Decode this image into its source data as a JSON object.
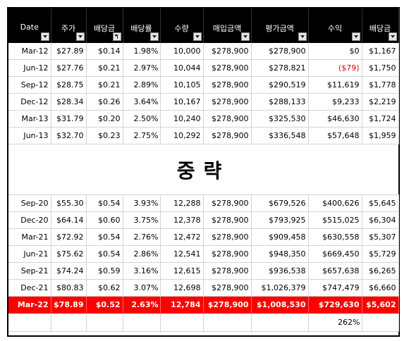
{
  "headers": [
    "Date",
    "주가",
    "배당금",
    "배당률",
    "수량",
    "매입금액",
    "평가금액",
    "수익",
    "배당금"
  ],
  "rows_top": [
    [
      "Mar-12",
      "$27.89",
      "$0.14",
      "1.98%",
      "10,000",
      "$278,900",
      "$278,900",
      "$0",
      "$1,167"
    ],
    [
      "Jun-12",
      "$27.76",
      "$0.21",
      "2.97%",
      "10,044",
      "$278,900",
      "$278,821",
      "($79)",
      "$1,750"
    ],
    [
      "Sep-12",
      "$28.75",
      "$0.21",
      "2.89%",
      "10,105",
      "$278,900",
      "$290,519",
      "$11,619",
      "$1,778"
    ],
    [
      "Dec-12",
      "$28.34",
      "$0.26",
      "3.64%",
      "10,167",
      "$278,900",
      "$288,133",
      "$9,233",
      "$2,219"
    ],
    [
      "Mar-13",
      "$31.79",
      "$0.20",
      "2.50%",
      "10,240",
      "$278,900",
      "$325,530",
      "$46,630",
      "$1,724"
    ],
    [
      "Jun-13",
      "$32.70",
      "$0.23",
      "2.75%",
      "10,292",
      "$278,900",
      "$336,548",
      "$57,648",
      "$1,959"
    ]
  ],
  "omission_text": "중략",
  "rows_bottom": [
    [
      "Sep-20",
      "$55.30",
      "$0.54",
      "3.93%",
      "12,288",
      "$278,900",
      "$679,526",
      "$400,626",
      "$5,645"
    ],
    [
      "Dec-20",
      "$64.14",
      "$0.60",
      "3.75%",
      "12,378",
      "$278,900",
      "$793,925",
      "$515,025",
      "$6,304"
    ],
    [
      "Mar-21",
      "$72.92",
      "$0.54",
      "2.76%",
      "12,472",
      "$278,900",
      "$909,458",
      "$630,558",
      "$5,307"
    ],
    [
      "Jun-21",
      "$75.62",
      "$0.54",
      "2.86%",
      "12,541",
      "$278,900",
      "$948,350",
      "$669,450",
      "$5,729"
    ],
    [
      "Sep-21",
      "$74.24",
      "$0.59",
      "3.16%",
      "12,615",
      "$278,900",
      "$936,538",
      "$657,638",
      "$6,265"
    ],
    [
      "Dec-21",
      "$80.83",
      "$0.62",
      "3.07%",
      "12,698",
      "$278,900",
      "$1,026,379",
      "$747,479",
      "$6,660"
    ]
  ],
  "highlight_row": [
    "Mar-22",
    "$78.89",
    "$0.52",
    "2.63%",
    "12,784",
    "$278,900",
    "$1,008,530",
    "$729,630",
    "$5,602"
  ],
  "summary_row": [
    "",
    "",
    "",
    "",
    "",
    "",
    "",
    "262%",
    ""
  ],
  "colors": {
    "header_bg": "#000000",
    "highlight_bg": "#ff0000",
    "negative_text": "#e00000"
  },
  "filtered_column_index": 2
}
